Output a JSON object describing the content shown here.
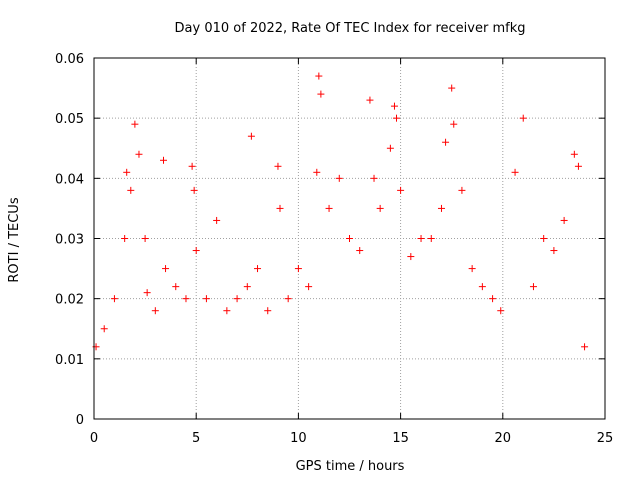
{
  "chart_data": {
    "type": "scatter",
    "title": "Day 010 of 2022, Rate Of TEC Index for receiver mfkg",
    "xlabel": "GPS time / hours",
    "ylabel": "ROTI / TECUs",
    "xlim": [
      0,
      25
    ],
    "ylim": [
      0,
      0.06
    ],
    "x_ticks": [
      0,
      5,
      10,
      15,
      20,
      25
    ],
    "x_tick_labels": [
      "0",
      "5",
      "10",
      "15",
      "20",
      "25"
    ],
    "y_ticks": [
      0,
      0.01,
      0.02,
      0.03,
      0.04,
      0.05,
      0.06
    ],
    "y_tick_labels": [
      "0",
      "0.01",
      "0.02",
      "0.03",
      "0.04",
      "0.05",
      "0.06"
    ],
    "grid": true,
    "marker": "plus",
    "color": "#ff0000",
    "series": [
      {
        "x": [
          0.1,
          0.5,
          1.0,
          1.5,
          1.6,
          1.8,
          2.0,
          2.2,
          2.5,
          2.6,
          3.0,
          3.4,
          3.5,
          4.0,
          4.5,
          4.8,
          4.9,
          5.0,
          5.5,
          6.0,
          6.5,
          7.0,
          7.5,
          7.7,
          8.0,
          8.5,
          9.0,
          9.1,
          9.5,
          10.0,
          10.5,
          10.9,
          11.0,
          11.1,
          11.5,
          12.0,
          12.5,
          13.0,
          13.5,
          13.7,
          14.0,
          14.5,
          14.7,
          14.8,
          15.0,
          15.5,
          16.0,
          16.5,
          17.0,
          17.2,
          17.5,
          17.6,
          18.0,
          18.5,
          19.0,
          19.5,
          19.9,
          20.6,
          21.0,
          21.5,
          22.0,
          22.5,
          23.0,
          23.5,
          23.7,
          24.0
        ],
        "y": [
          0.012,
          0.015,
          0.02,
          0.03,
          0.041,
          0.038,
          0.049,
          0.044,
          0.03,
          0.021,
          0.018,
          0.043,
          0.025,
          0.022,
          0.02,
          0.042,
          0.038,
          0.028,
          0.02,
          0.033,
          0.018,
          0.02,
          0.022,
          0.047,
          0.025,
          0.018,
          0.042,
          0.035,
          0.02,
          0.025,
          0.022,
          0.041,
          0.057,
          0.054,
          0.035,
          0.04,
          0.03,
          0.028,
          0.053,
          0.04,
          0.035,
          0.045,
          0.052,
          0.05,
          0.038,
          0.027,
          0.03,
          0.03,
          0.035,
          0.046,
          0.055,
          0.049,
          0.038,
          0.025,
          0.022,
          0.02,
          0.018,
          0.041,
          0.05,
          0.022,
          0.03,
          0.028,
          0.033,
          0.044,
          0.042,
          0.012
        ]
      }
    ],
    "data_gap_hours": [
      20.0,
      20.4
    ]
  }
}
